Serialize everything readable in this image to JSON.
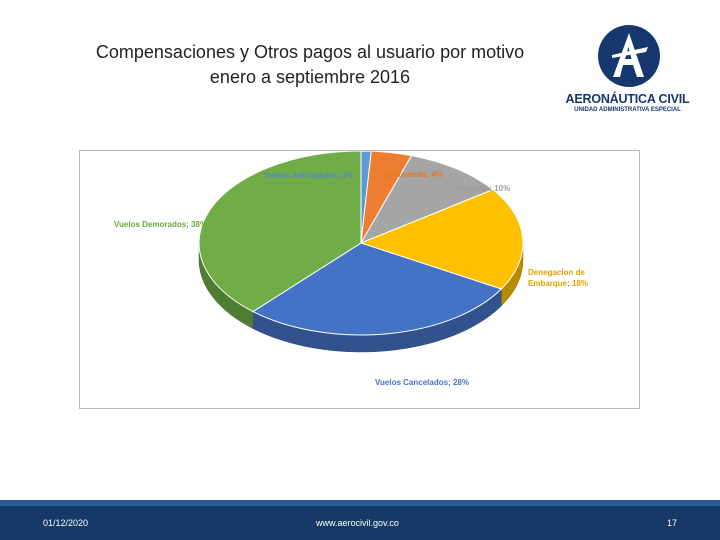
{
  "slide": {
    "title_line1": "Compensaciones y Otros pagos al usuario por motivo",
    "title_line2": "enero a septiembre 2016"
  },
  "logo": {
    "name": "AERONÁUTICA CIVIL",
    "subtitle": "UNIDAD ADMINISTRATIVA ESPECIAL",
    "letter": "A"
  },
  "footer": {
    "date": "01/12/2020",
    "url": "www.aerocivil.gov.co",
    "page": "17"
  },
  "colors": {
    "brand": "#16386f",
    "footer": "#163968"
  },
  "chart_data": {
    "type": "pie",
    "title": "",
    "style": "3d",
    "legend": "none",
    "slices": [
      {
        "label": "Vuelos Anticipados",
        "value": 1,
        "text": "Vuelos Anticipados; 1%",
        "color": "#5b9bd5",
        "label_color": "#5b86c6"
      },
      {
        "label": "Sobreventa",
        "value": 4,
        "text": "Sobreventa; 4%",
        "color": "#ed7d31",
        "label_color": "#e8761f"
      },
      {
        "label": "Equipaje",
        "value": 10,
        "text": "Equipaje; 10%",
        "color": "#a5a5a5",
        "label_color": "#9a9a9a"
      },
      {
        "label": "Denegacion de Embarque",
        "value": 18,
        "text_lines": [
          "Denegacion de",
          "Embarque; 18%"
        ],
        "color": "#ffc000",
        "label_color": "#e6a100"
      },
      {
        "label": "Vuelos Cancelados",
        "value": 28,
        "text": "Vuelos Cancelados; 28%",
        "color": "#4472c4",
        "label_color": "#4a72c4"
      },
      {
        "label": "Vuelos Demorados",
        "value": 38,
        "text": "Vuelos Demorados; 38%",
        "color": "#70ad47",
        "label_color": "#6aa83e"
      }
    ]
  }
}
